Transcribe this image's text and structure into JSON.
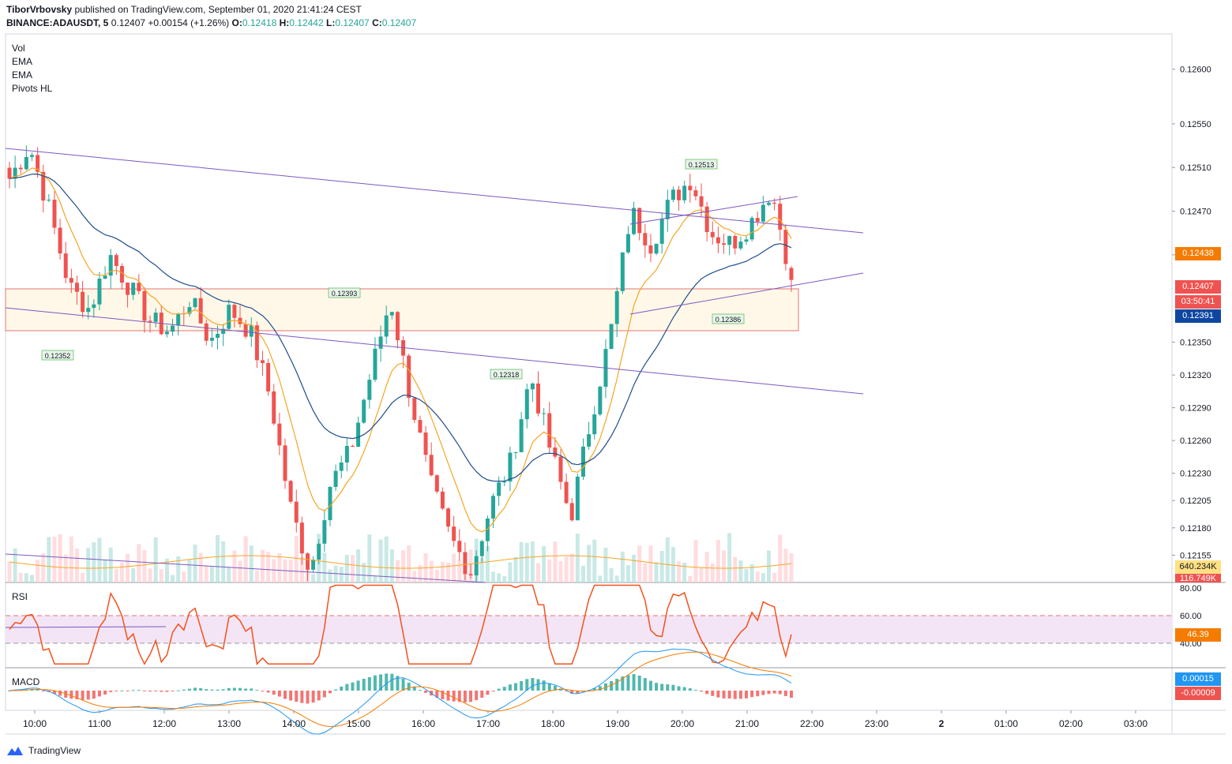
{
  "header": {
    "author": "TiborVrbovsky",
    "published_text": " published on TradingView.com, September 01, 2020 21:41:24 CEST",
    "symbol": "BINANCE:ADAUSDT, 5",
    "last": "0.12407",
    "change": "+0.00154 (+1.26%)",
    "open_label": "O:",
    "open": "0.12418",
    "high_label": "H:",
    "high": "0.12442",
    "low_label": "L:",
    "low": "0.12407",
    "close_label": "C:",
    "close": "0.12407"
  },
  "indicators": [
    "Vol",
    "EMA",
    "EMA",
    "Pivots HL"
  ],
  "rsi_label": "RSI",
  "macd_label": "MACD",
  "price_axis": [
    "0.12600",
    "0.12550",
    "0.12510",
    "0.12470",
    "0.12430",
    "0.12350",
    "0.12320",
    "0.12290",
    "0.12260",
    "0.12230",
    "0.12205",
    "0.12180",
    "0.12155"
  ],
  "rsi_axis": [
    "80.00",
    "60.00",
    "40.00"
  ],
  "time_axis": [
    "10:00",
    "11:00",
    "12:00",
    "13:00",
    "14:00",
    "15:00",
    "16:00",
    "17:00",
    "18:00",
    "19:00",
    "20:00",
    "21:00",
    "22:00",
    "23:00",
    "2",
    "01:00",
    "02:00",
    "03:00"
  ],
  "badges": {
    "ema_fast": {
      "text": "0.12438",
      "color": "#f57c00"
    },
    "last_price": {
      "text": "0.12407",
      "color": "#ef5350"
    },
    "countdown": {
      "text": "03:50:41",
      "color": "#ef5350"
    },
    "ema_slow": {
      "text": "0.12391",
      "color": "#0d47a1"
    },
    "volume_ma": {
      "text": "640.234K",
      "color": "#ffe082"
    },
    "volume": {
      "text": "116.749K",
      "color": "#ef5350"
    },
    "rsi": {
      "text": "46.39",
      "color": "#f57c00"
    },
    "macd": {
      "text": "0.00015",
      "color": "#2196f3"
    },
    "macd_signal": {
      "text": "-0.00009",
      "color": "#ef5350"
    }
  },
  "pivot_labels": [
    "0.12352",
    "0.12393",
    "0.12318",
    "0.12513",
    "0.12386"
  ],
  "brand": "TradingView",
  "colors": {
    "up": "#26a69a",
    "down": "#ef5350",
    "ema_fast": "#f5a623",
    "ema_slow": "#1f4e8c",
    "trend": "#7e57c2",
    "zone": "#fff8e8"
  },
  "chart_data": {
    "type": "candlestick",
    "symbol": "BINANCE:ADAUSDT",
    "interval": "5",
    "ohlc_last": {
      "open": 0.12418,
      "high": 0.12442,
      "low": 0.12407,
      "close": 0.12407
    },
    "price_range": [
      0.1213,
      0.1262
    ],
    "close_path": [
      0.125,
      0.1253,
      0.1247,
      0.124,
      0.1238,
      0.1243,
      0.124,
      0.1237,
      0.1236,
      0.1239,
      0.1235,
      0.1238,
      0.1236,
      0.123,
      0.122,
      0.1214,
      0.1222,
      0.1225,
      0.1232,
      0.1239,
      0.123,
      0.1222,
      0.1217,
      0.1214,
      0.122,
      0.1224,
      0.1232,
      0.1225,
      0.1219,
      0.1228,
      0.1236,
      0.1247,
      0.1244,
      0.1248,
      0.125,
      0.1245,
      0.1244,
      0.1246,
      0.1249,
      0.1241
    ],
    "ema_fast_last": 0.12438,
    "ema_slow_last": 0.12391,
    "pivots": [
      0.12352,
      0.12393,
      0.12318,
      0.12513,
      0.12386
    ],
    "rsi_last": 46.39,
    "rsi_band": [
      40,
      60
    ],
    "macd_last": 0.00015,
    "macd_signal_last": -9e-05,
    "volume_last": "116.749K",
    "volume_ma_last": "640.234K",
    "x_ticks": [
      "10:00",
      "11:00",
      "12:00",
      "13:00",
      "14:00",
      "15:00",
      "16:00",
      "17:00",
      "18:00",
      "19:00",
      "20:00",
      "21:00",
      "22:00",
      "23:00",
      "2",
      "01:00",
      "02:00",
      "03:00"
    ]
  }
}
